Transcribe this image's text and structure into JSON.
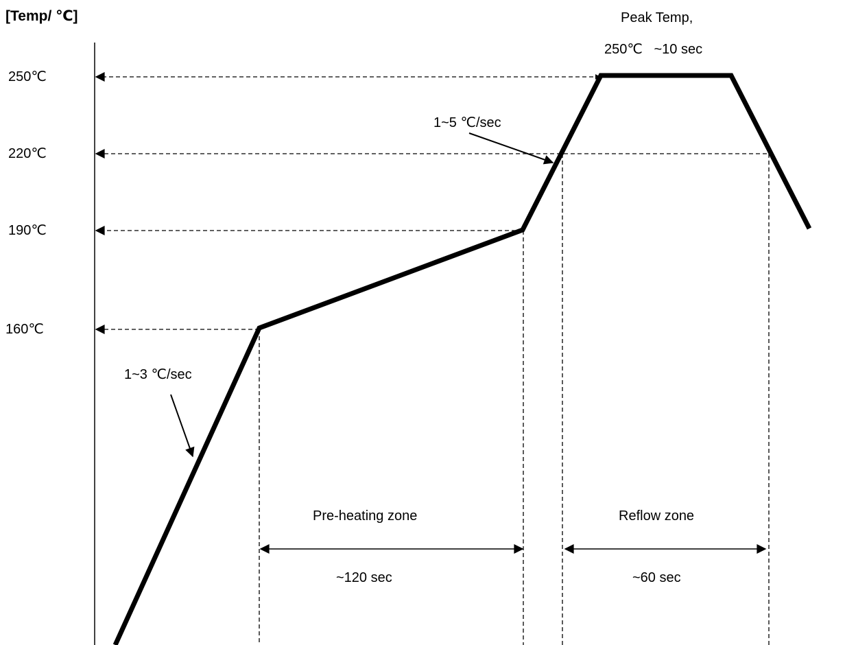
{
  "axis_title": "[Temp/ ℃]",
  "temperature_levels": [
    {
      "label": "250℃",
      "value": 250
    },
    {
      "label": "220℃",
      "value": 220
    },
    {
      "label": "190℃",
      "value": 190
    },
    {
      "label": "160℃",
      "value": 160
    }
  ],
  "annotations": {
    "peak_title": "Peak Temp,",
    "peak_detail": "250℃   ~10 sec",
    "ramp_up_rate": "1~3 ℃/sec",
    "ramp_reflow_rate": "1~5 ℃/sec"
  },
  "zones": {
    "preheat_label": "Pre-heating zone",
    "preheat_duration": "~120 sec",
    "reflow_label": "Reflow zone",
    "reflow_duration": "~60 sec"
  },
  "colors": {
    "line": "#000000",
    "background": "#ffffff"
  }
}
